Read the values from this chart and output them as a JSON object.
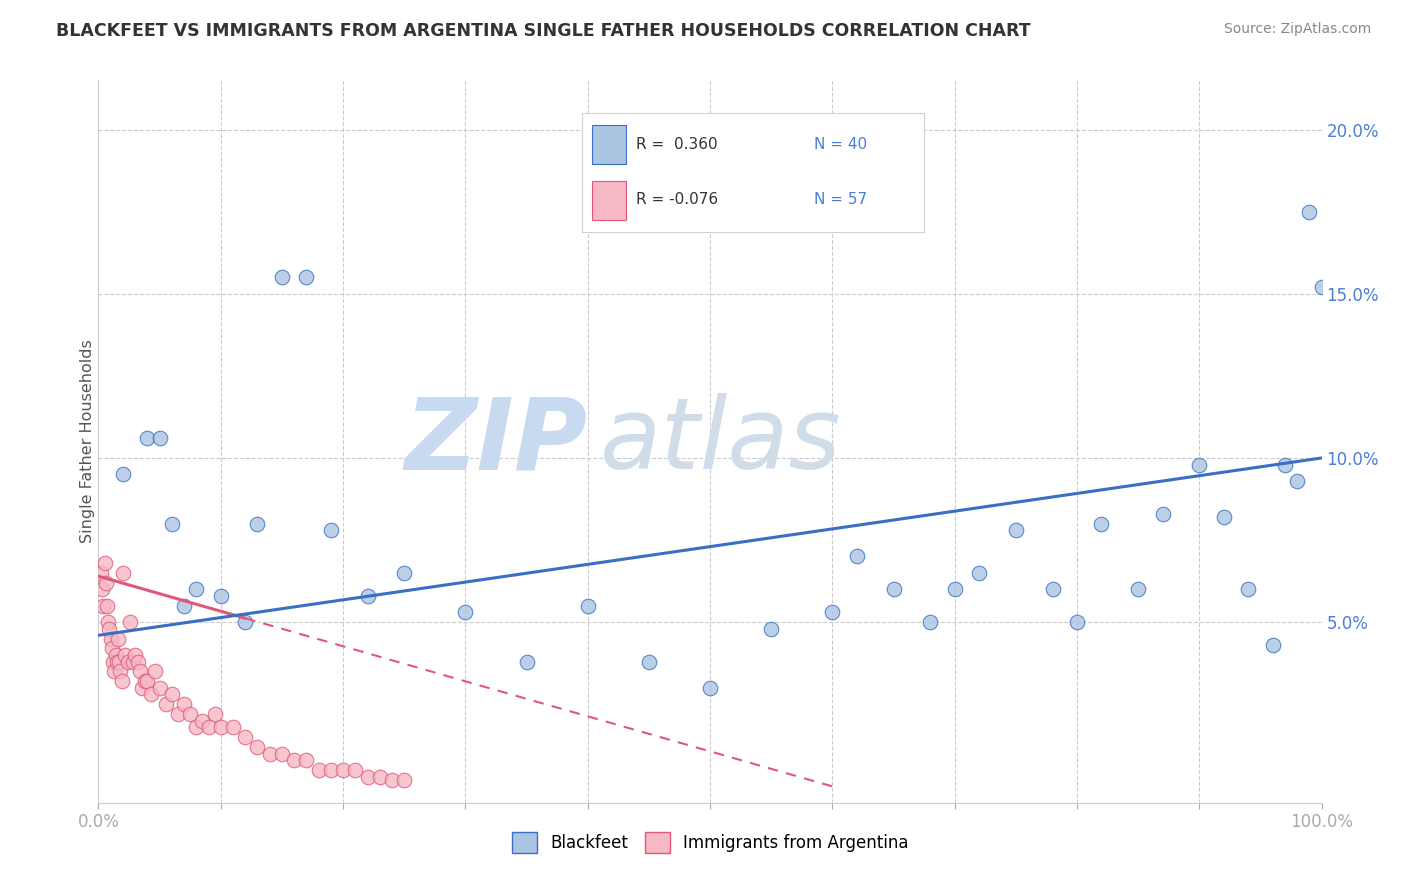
{
  "title": "BLACKFEET VS IMMIGRANTS FROM ARGENTINA SINGLE FATHER HOUSEHOLDS CORRELATION CHART",
  "source": "Source: ZipAtlas.com",
  "ylabel": "Single Father Households",
  "xlim": [
    0,
    1.0
  ],
  "ylim": [
    -0.005,
    0.215
  ],
  "color_blue": "#aac4e2",
  "color_pink": "#f5b8c4",
  "line_blue": "#3a6fc4",
  "line_pink": "#e05878",
  "watermark_zip_color": "#c8daf0",
  "watermark_atlas_color": "#d0dce8",
  "background_color": "#ffffff",
  "title_fontsize": 12.5,
  "blue_points_x": [
    0.02,
    0.04,
    0.05,
    0.06,
    0.07,
    0.08,
    0.1,
    0.12,
    0.13,
    0.15,
    0.17,
    0.19,
    0.22,
    0.25,
    0.3,
    0.35,
    0.4,
    0.45,
    0.5,
    0.55,
    0.6,
    0.62,
    0.65,
    0.68,
    0.7,
    0.72,
    0.75,
    0.78,
    0.8,
    0.82,
    0.85,
    0.87,
    0.9,
    0.92,
    0.94,
    0.96,
    0.97,
    0.98,
    0.99,
    1.0
  ],
  "blue_points_y": [
    0.095,
    0.106,
    0.106,
    0.08,
    0.055,
    0.06,
    0.058,
    0.05,
    0.08,
    0.155,
    0.155,
    0.078,
    0.058,
    0.065,
    0.053,
    0.038,
    0.055,
    0.038,
    0.03,
    0.048,
    0.053,
    0.07,
    0.06,
    0.05,
    0.06,
    0.065,
    0.078,
    0.06,
    0.05,
    0.08,
    0.06,
    0.083,
    0.098,
    0.082,
    0.06,
    0.043,
    0.098,
    0.093,
    0.175,
    0.152
  ],
  "pink_points_x": [
    0.002,
    0.003,
    0.004,
    0.005,
    0.006,
    0.007,
    0.008,
    0.009,
    0.01,
    0.011,
    0.012,
    0.013,
    0.014,
    0.015,
    0.016,
    0.017,
    0.018,
    0.019,
    0.02,
    0.022,
    0.024,
    0.026,
    0.028,
    0.03,
    0.032,
    0.034,
    0.036,
    0.038,
    0.04,
    0.043,
    0.046,
    0.05,
    0.055,
    0.06,
    0.065,
    0.07,
    0.075,
    0.08,
    0.085,
    0.09,
    0.095,
    0.1,
    0.11,
    0.12,
    0.13,
    0.14,
    0.15,
    0.16,
    0.17,
    0.18,
    0.19,
    0.2,
    0.21,
    0.22,
    0.23,
    0.24,
    0.25
  ],
  "pink_points_y": [
    0.065,
    0.06,
    0.055,
    0.068,
    0.062,
    0.055,
    0.05,
    0.048,
    0.045,
    0.042,
    0.038,
    0.035,
    0.04,
    0.038,
    0.045,
    0.038,
    0.035,
    0.032,
    0.065,
    0.04,
    0.038,
    0.05,
    0.038,
    0.04,
    0.038,
    0.035,
    0.03,
    0.032,
    0.032,
    0.028,
    0.035,
    0.03,
    0.025,
    0.028,
    0.022,
    0.025,
    0.022,
    0.018,
    0.02,
    0.018,
    0.022,
    0.018,
    0.018,
    0.015,
    0.012,
    0.01,
    0.01,
    0.008,
    0.008,
    0.005,
    0.005,
    0.005,
    0.005,
    0.003,
    0.003,
    0.002,
    0.002
  ],
  "blue_line_x0": 0.0,
  "blue_line_y0": 0.046,
  "blue_line_x1": 1.0,
  "blue_line_y1": 0.1,
  "pink_line_x0": 0.0,
  "pink_line_y0": 0.064,
  "pink_line_x1": 0.6,
  "pink_line_y1": 0.0,
  "pink_line_solid_x1": 0.12
}
